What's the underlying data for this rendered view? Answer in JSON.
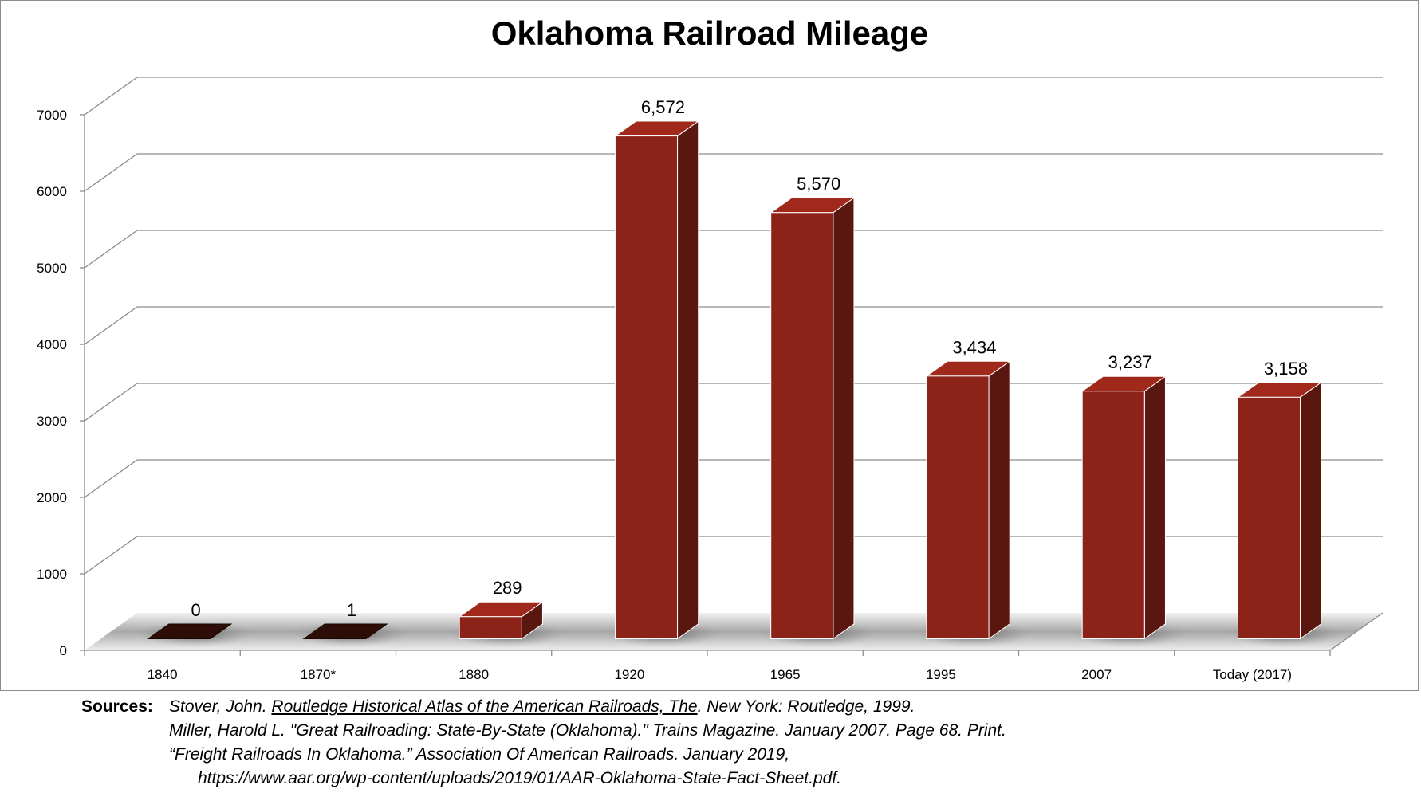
{
  "chart_data": {
    "type": "bar",
    "title": "Oklahoma Railroad Mileage",
    "categories": [
      "1840",
      "1870*",
      "1880",
      "1920",
      "1965",
      "1995",
      "2007",
      "Today  (2017)"
    ],
    "values": [
      0,
      1,
      289,
      6572,
      5570,
      3434,
      3237,
      3158
    ],
    "data_labels": [
      "0",
      "1",
      "289",
      "6,572",
      "5,570",
      "3,434",
      "3,237",
      "3,158"
    ],
    "xlabel": "",
    "ylabel": "",
    "ylim": [
      0,
      7000
    ],
    "yticks": [
      0,
      1000,
      2000,
      3000,
      4000,
      5000,
      6000,
      7000
    ],
    "grid": true,
    "legend": "none",
    "bar_color": "#8b2318",
    "bar_side_color": "#5a1710",
    "bar_top_color": "#a0291c",
    "floor_bar_color": "#2e0d07"
  },
  "sources": {
    "heading": "Sources:",
    "line1_before": "Stover, John. ",
    "line1_title": "Routledge Historical Atlas of the American Railroads, The",
    "line1_after": ". New York: Routledge, 1999.",
    "line2": "Miller, Harold L. \"Great Railroading: State-By-State (Oklahoma).\" Trains Magazine. January 2007. Page 68. Print.",
    "line3": "“Freight Railroads In Oklahoma.” Association Of American Railroads. January 2019,",
    "line4": "https://www.aar.org/wp-content/uploads/2019/01/AAR-Oklahoma-State-Fact-Sheet.pdf."
  }
}
